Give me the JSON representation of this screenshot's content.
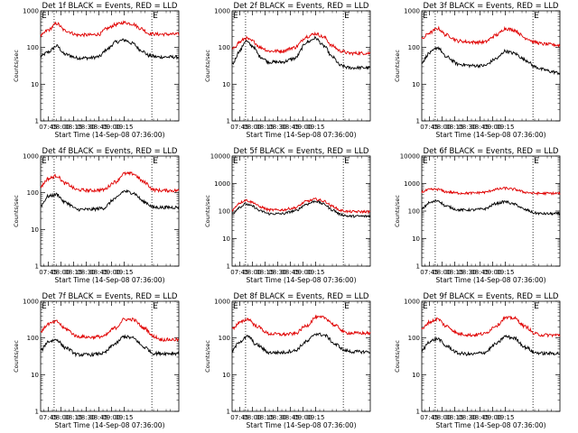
{
  "colors": {
    "events": "#000000",
    "lld": "#e00000",
    "background": "#ffffff"
  },
  "chart_data": [
    {
      "type": "line",
      "title": "Det 1f BLACK = Events, RED = LLD",
      "xlabel": "Start Time (14-Sep-08 07:36:00)",
      "ylabel": "Counts/sec",
      "yscale": "log",
      "ylim": [
        1,
        1000
      ],
      "y_ticks": [
        "1",
        "10",
        "100",
        "1000"
      ],
      "x_ticks": [
        "07:45",
        "08:00",
        "08:15",
        "08:30",
        "08:45",
        "09:00",
        "09:15"
      ],
      "xlim_minutes": [
        36,
        200
      ],
      "markers": [
        {
          "label": "E",
          "x_min": 36
        },
        {
          "label": "E",
          "x_min": 168
        }
      ],
      "vlines_min": [
        52,
        168
      ],
      "series": [
        {
          "name": "Events",
          "color": "#000000",
          "x_min": [
            36,
            45,
            55,
            65,
            80,
            95,
            105,
            115,
            125,
            135,
            145,
            155,
            165,
            175,
            185,
            200
          ],
          "y": [
            58,
            75,
            110,
            65,
            52,
            52,
            56,
            90,
            140,
            160,
            130,
            85,
            60,
            55,
            55,
            55
          ]
        },
        {
          "name": "LLD",
          "color": "#e00000",
          "x_min": [
            36,
            45,
            55,
            65,
            80,
            95,
            105,
            115,
            125,
            135,
            145,
            155,
            165,
            175,
            185,
            200
          ],
          "y": [
            210,
            300,
            450,
            290,
            220,
            220,
            230,
            330,
            420,
            480,
            440,
            330,
            240,
            230,
            230,
            230
          ]
        }
      ]
    },
    {
      "type": "line",
      "title": "Det 2f BLACK = Events, RED = LLD",
      "xlabel": "Start Time (14-Sep-08 07:36:00)",
      "ylabel": "Counts/sec",
      "yscale": "log",
      "ylim": [
        1,
        1000
      ],
      "y_ticks": [
        "1",
        "10",
        "100",
        "1000"
      ],
      "x_ticks": [
        "07:45",
        "08:00",
        "08:15",
        "08:30",
        "08:45",
        "09:00",
        "09:15"
      ],
      "xlim_minutes": [
        36,
        200
      ],
      "markers": [
        {
          "label": "E",
          "x_min": 36
        },
        {
          "label": "E",
          "x_min": 168
        }
      ],
      "vlines_min": [
        52,
        168
      ],
      "series": [
        {
          "name": "Events",
          "color": "#000000",
          "x_min": [
            36,
            45,
            52,
            60,
            70,
            80,
            95,
            110,
            125,
            135,
            145,
            155,
            165,
            175,
            185,
            200
          ],
          "y": [
            35,
            80,
            150,
            110,
            55,
            40,
            40,
            50,
            140,
            180,
            110,
            55,
            32,
            28,
            28,
            28
          ]
        },
        {
          "name": "LLD",
          "color": "#e00000",
          "x_min": [
            36,
            45,
            52,
            60,
            70,
            80,
            95,
            110,
            125,
            135,
            145,
            155,
            165,
            175,
            185,
            200
          ],
          "y": [
            90,
            140,
            180,
            150,
            100,
            80,
            80,
            100,
            200,
            240,
            190,
            110,
            80,
            70,
            70,
            70
          ]
        }
      ]
    },
    {
      "type": "line",
      "title": "Det 3f BLACK = Events, RED = LLD",
      "xlabel": "Start Time (14-Sep-08 07:36:00)",
      "ylabel": "Counts/sec",
      "yscale": "log",
      "ylim": [
        1,
        1000
      ],
      "y_ticks": [
        "1",
        "10",
        "100",
        "1000"
      ],
      "x_ticks": [
        "07:45",
        "08:00",
        "08:15",
        "08:30",
        "08:45",
        "09:00",
        "09:15"
      ],
      "xlim_minutes": [
        36,
        200
      ],
      "markers": [
        {
          "label": "E",
          "x_min": 36
        },
        {
          "label": "E",
          "x_min": 168
        }
      ],
      "vlines_min": [
        52,
        168
      ],
      "series": [
        {
          "name": "Events",
          "color": "#000000",
          "x_min": [
            36,
            45,
            55,
            65,
            80,
            95,
            110,
            125,
            135,
            145,
            160,
            170,
            180,
            190,
            200
          ],
          "y": [
            40,
            70,
            100,
            55,
            35,
            32,
            32,
            50,
            80,
            70,
            45,
            30,
            25,
            22,
            20
          ]
        },
        {
          "name": "LLD",
          "color": "#e00000",
          "x_min": [
            36,
            45,
            55,
            65,
            80,
            95,
            110,
            125,
            135,
            145,
            160,
            170,
            180,
            190,
            200
          ],
          "y": [
            170,
            250,
            330,
            220,
            150,
            140,
            140,
            220,
            330,
            300,
            180,
            140,
            125,
            120,
            115
          ]
        }
      ]
    },
    {
      "type": "line",
      "title": "Det 4f BLACK = Events, RED = LLD",
      "xlabel": "Start Time (14-Sep-08 07:36:00)",
      "ylabel": "Counts/sec",
      "yscale": "log",
      "ylim": [
        1,
        1000
      ],
      "y_ticks": [
        "1",
        "10",
        "100",
        "1000"
      ],
      "x_ticks": [
        "07:45",
        "08:00",
        "08:15",
        "08:30",
        "08:45",
        "09:00",
        "09:15"
      ],
      "xlim_minutes": [
        36,
        200
      ],
      "markers": [
        {
          "label": "E",
          "x_min": 36
        },
        {
          "label": "E",
          "x_min": 168
        }
      ],
      "vlines_min": [
        52,
        168
      ],
      "series": [
        {
          "name": "Events",
          "color": "#000000",
          "x_min": [
            36,
            45,
            55,
            65,
            80,
            95,
            110,
            125,
            135,
            145,
            160,
            170,
            180,
            190,
            200
          ],
          "y": [
            45,
            80,
            90,
            55,
            35,
            35,
            38,
            70,
            110,
            100,
            55,
            40,
            40,
            40,
            40
          ]
        },
        {
          "name": "LLD",
          "color": "#e00000",
          "x_min": [
            36,
            45,
            55,
            65,
            80,
            95,
            110,
            125,
            135,
            145,
            160,
            170,
            180,
            190,
            200
          ],
          "y": [
            150,
            240,
            290,
            180,
            120,
            115,
            120,
            200,
            330,
            330,
            190,
            120,
            115,
            115,
            115
          ]
        }
      ]
    },
    {
      "type": "line",
      "title": "Det 5f BLACK = Events, RED = LLD",
      "xlabel": "Start Time (14-Sep-08 07:36:00)",
      "ylabel": "Counts/sec",
      "yscale": "log",
      "ylim": [
        1,
        10000
      ],
      "y_ticks": [
        "1",
        "10",
        "100",
        "1000",
        "10000"
      ],
      "x_ticks": [
        "07:45",
        "08:00",
        "08:15",
        "08:30",
        "08:45",
        "09:00",
        "09:15"
      ],
      "xlim_minutes": [
        36,
        200
      ],
      "markers": [
        {
          "label": "E",
          "x_min": 36
        },
        {
          "label": "E",
          "x_min": 168
        }
      ],
      "vlines_min": [
        52,
        168
      ],
      "series": [
        {
          "name": "Events",
          "color": "#000000",
          "x_min": [
            36,
            45,
            52,
            60,
            70,
            80,
            95,
            110,
            125,
            135,
            145,
            155,
            165,
            175,
            185,
            200
          ],
          "y": [
            80,
            140,
            180,
            150,
            100,
            80,
            80,
            100,
            180,
            230,
            180,
            110,
            75,
            65,
            65,
            65
          ]
        },
        {
          "name": "LLD",
          "color": "#e00000",
          "x_min": [
            36,
            45,
            52,
            60,
            70,
            80,
            95,
            110,
            125,
            135,
            145,
            155,
            165,
            175,
            185,
            200
          ],
          "y": [
            110,
            200,
            250,
            210,
            140,
            110,
            110,
            130,
            230,
            270,
            230,
            150,
            105,
            95,
            95,
            95
          ]
        }
      ]
    },
    {
      "type": "line",
      "title": "Det 6f BLACK = Events, RED = LLD",
      "xlabel": "Start Time (14-Sep-08 07:36:00)",
      "ylabel": "Counts/sec",
      "yscale": "log",
      "ylim": [
        1,
        10000
      ],
      "y_ticks": [
        "1",
        "10",
        "100",
        "1000",
        "10000"
      ],
      "x_ticks": [
        "07:45",
        "08:00",
        "08:15",
        "08:30",
        "08:45",
        "09:00",
        "09:15"
      ],
      "xlim_minutes": [
        36,
        200
      ],
      "markers": [
        {
          "label": "E",
          "x_min": 36
        },
        {
          "label": "E",
          "x_min": 168
        }
      ],
      "vlines_min": [
        52,
        168
      ],
      "series": [
        {
          "name": "Events",
          "color": "#000000",
          "x_min": [
            36,
            45,
            55,
            65,
            80,
            95,
            110,
            125,
            135,
            145,
            160,
            170,
            180,
            190,
            200
          ],
          "y": [
            120,
            200,
            240,
            150,
            110,
            110,
            120,
            190,
            220,
            180,
            110,
            85,
            80,
            80,
            80
          ]
        },
        {
          "name": "LLD",
          "color": "#e00000",
          "x_min": [
            36,
            45,
            55,
            65,
            80,
            95,
            110,
            125,
            135,
            145,
            160,
            170,
            180,
            190,
            200
          ],
          "y": [
            500,
            600,
            620,
            500,
            450,
            450,
            480,
            620,
            680,
            620,
            480,
            440,
            440,
            440,
            440
          ]
        }
      ]
    },
    {
      "type": "line",
      "title": "Det 7f BLACK = Events, RED = LLD",
      "xlabel": "Start Time (14-Sep-08 07:36:00)",
      "ylabel": "Counts/sec",
      "yscale": "log",
      "ylim": [
        1,
        1000
      ],
      "y_ticks": [
        "1",
        "10",
        "100",
        "1000"
      ],
      "x_ticks": [
        "07:45",
        "08:00",
        "08:15",
        "08:30",
        "08:45",
        "09:00",
        "09:15"
      ],
      "xlim_minutes": [
        36,
        200
      ],
      "markers": [
        {
          "label": "E",
          "x_min": 36
        },
        {
          "label": "E",
          "x_min": 168
        }
      ],
      "vlines_min": [
        52,
        168
      ],
      "series": [
        {
          "name": "Events",
          "color": "#000000",
          "x_min": [
            36,
            45,
            55,
            65,
            80,
            95,
            110,
            125,
            135,
            145,
            160,
            170,
            180,
            190,
            200
          ],
          "y": [
            45,
            80,
            90,
            55,
            35,
            35,
            38,
            70,
            110,
            100,
            55,
            38,
            38,
            38,
            38
          ]
        },
        {
          "name": "LLD",
          "color": "#e00000",
          "x_min": [
            36,
            45,
            55,
            65,
            80,
            95,
            110,
            125,
            135,
            145,
            160,
            170,
            180,
            190,
            200
          ],
          "y": [
            150,
            240,
            280,
            180,
            110,
            105,
            110,
            190,
            320,
            320,
            180,
            110,
            90,
            90,
            90
          ]
        }
      ]
    },
    {
      "type": "line",
      "title": "Det 8f BLACK = Events, RED = LLD",
      "xlabel": "Start Time (14-Sep-08 07:36:00)",
      "ylabel": "Counts/sec",
      "yscale": "log",
      "ylim": [
        1,
        1000
      ],
      "y_ticks": [
        "1",
        "10",
        "100",
        "1000"
      ],
      "x_ticks": [
        "07:45",
        "08:00",
        "08:15",
        "08:30",
        "08:45",
        "09:00",
        "09:15"
      ],
      "xlim_minutes": [
        36,
        200
      ],
      "markers": [
        {
          "label": "E",
          "x_min": 36
        },
        {
          "label": "E",
          "x_min": 168
        }
      ],
      "vlines_min": [
        52,
        168
      ],
      "series": [
        {
          "name": "Events",
          "color": "#000000",
          "x_min": [
            36,
            45,
            55,
            65,
            80,
            95,
            110,
            125,
            135,
            145,
            160,
            170,
            180,
            190,
            200
          ],
          "y": [
            45,
            80,
            110,
            65,
            40,
            40,
            45,
            80,
            130,
            120,
            65,
            45,
            42,
            42,
            42
          ]
        },
        {
          "name": "LLD",
          "color": "#e00000",
          "x_min": [
            36,
            45,
            55,
            65,
            80,
            95,
            110,
            125,
            135,
            145,
            160,
            170,
            180,
            190,
            200
          ],
          "y": [
            180,
            260,
            330,
            210,
            130,
            125,
            130,
            220,
            360,
            360,
            210,
            140,
            135,
            135,
            135
          ]
        }
      ]
    },
    {
      "type": "line",
      "title": "Det 9f BLACK = Events, RED = LLD",
      "xlabel": "Start Time (14-Sep-08 07:36:00)",
      "ylabel": "Counts/sec",
      "yscale": "log",
      "ylim": [
        1,
        1000
      ],
      "y_ticks": [
        "1",
        "10",
        "100",
        "1000"
      ],
      "x_ticks": [
        "07:45",
        "08:00",
        "08:15",
        "08:30",
        "08:45",
        "09:00",
        "09:15"
      ],
      "xlim_minutes": [
        36,
        200
      ],
      "markers": [
        {
          "label": "E",
          "x_min": 36
        },
        {
          "label": "E",
          "x_min": 168
        }
      ],
      "vlines_min": [
        52,
        168
      ],
      "series": [
        {
          "name": "Events",
          "color": "#000000",
          "x_min": [
            36,
            45,
            55,
            65,
            80,
            95,
            110,
            125,
            135,
            145,
            160,
            170,
            180,
            190,
            200
          ],
          "y": [
            45,
            80,
            95,
            60,
            38,
            36,
            40,
            70,
            110,
            100,
            55,
            40,
            38,
            38,
            38
          ]
        },
        {
          "name": "LLD",
          "color": "#e00000",
          "x_min": [
            36,
            45,
            55,
            65,
            80,
            95,
            110,
            125,
            135,
            145,
            160,
            170,
            180,
            190,
            200
          ],
          "y": [
            170,
            270,
            330,
            210,
            130,
            120,
            130,
            220,
            350,
            350,
            200,
            130,
            120,
            120,
            120
          ]
        }
      ]
    }
  ]
}
